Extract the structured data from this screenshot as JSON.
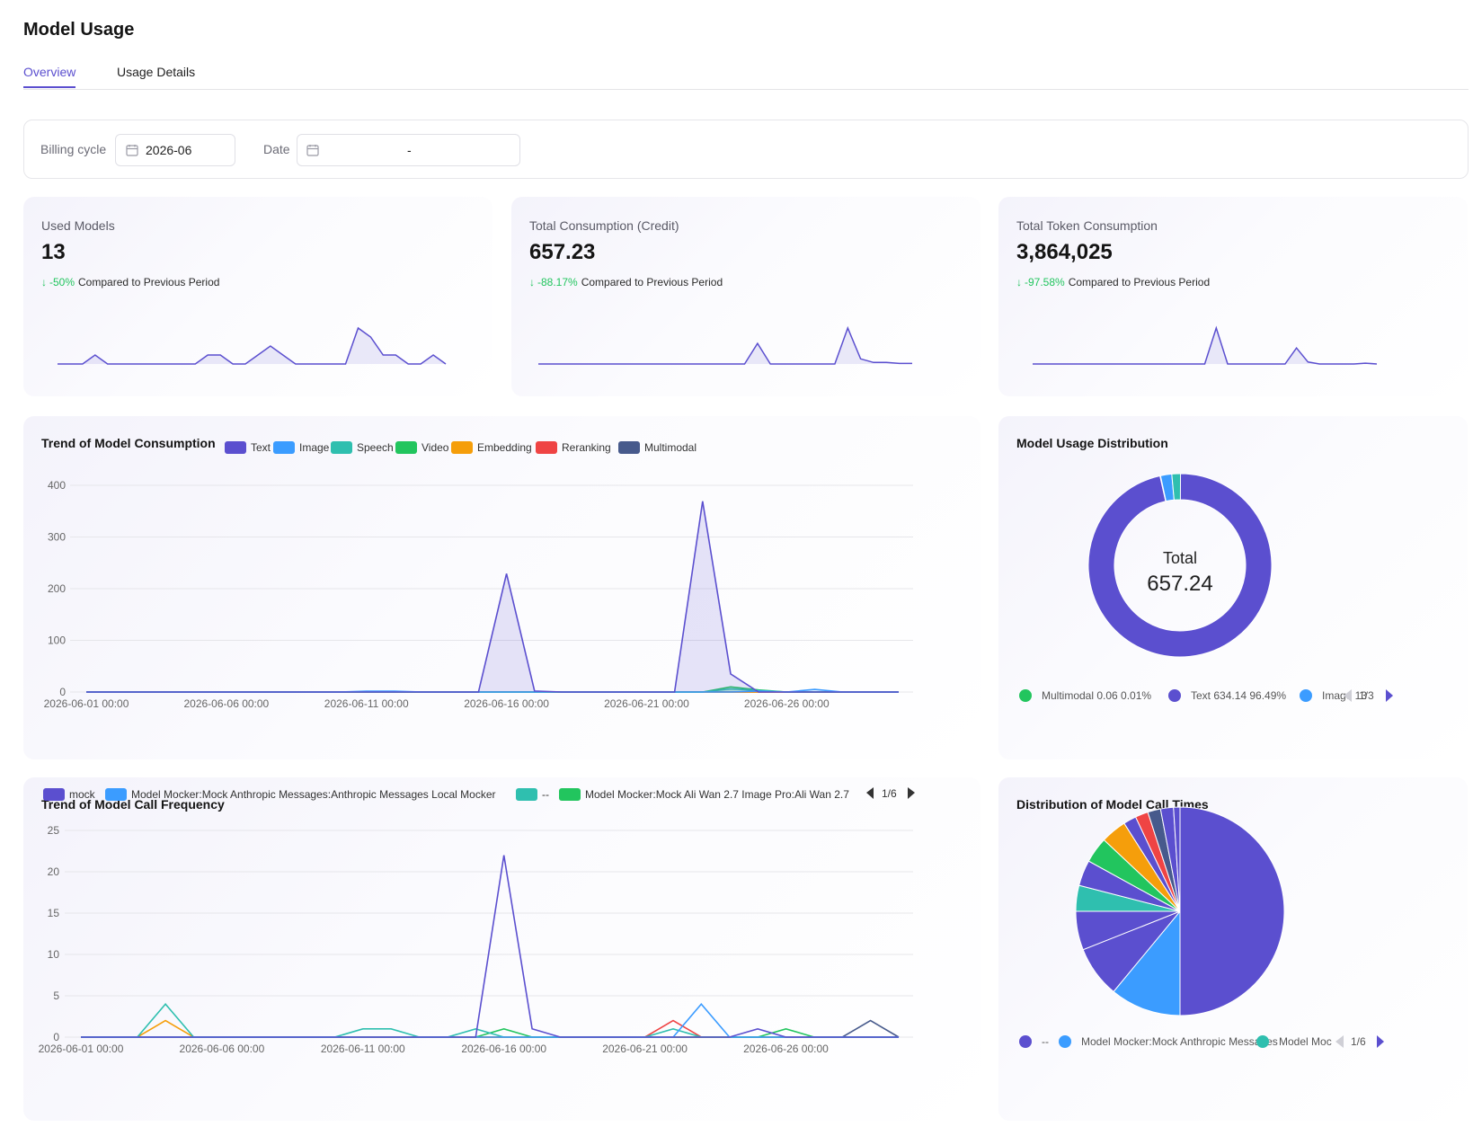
{
  "page": {
    "title": "Model Usage"
  },
  "tabs": [
    {
      "label": "Overview",
      "active": true
    },
    {
      "label": "Usage Details",
      "active": false
    }
  ],
  "filters": {
    "billing_cycle_label": "Billing cycle",
    "billing_cycle_value": "2026-06",
    "date_label": "Date",
    "date_separator": "-"
  },
  "colors": {
    "accent": "#5b4fcf",
    "positive": "#22c55e"
  },
  "kpis": [
    {
      "title": "Used Models",
      "value": "13",
      "change": "-50%",
      "change_text": "Compared to Previous Period"
    },
    {
      "title": "Total Consumption (Credit)",
      "value": "657.23",
      "change": "-88.17%",
      "change_text": "Compared to Previous Period"
    },
    {
      "title": "Total Token Consumption",
      "value": "3,864,025",
      "change": "-97.58%",
      "change_text": "Compared to Previous Period"
    }
  ],
  "sparklines": [
    [
      0,
      0,
      0,
      1,
      0,
      0,
      0,
      0,
      0,
      0,
      0,
      0,
      1,
      1,
      0,
      0,
      1,
      2,
      1,
      0,
      0,
      0,
      0,
      0,
      4,
      3,
      1,
      1,
      0,
      0,
      1,
      0
    ],
    [
      0,
      0,
      0,
      0,
      0,
      0,
      0,
      0,
      0,
      0,
      0,
      0,
      0,
      0,
      0,
      0,
      0,
      4,
      0,
      0,
      0,
      0,
      0,
      0,
      7,
      1,
      0.3,
      0.3,
      0.1,
      0.1
    ],
    [
      0,
      0,
      0,
      0,
      0,
      0,
      0,
      0,
      0,
      0,
      0,
      0,
      0,
      0,
      0,
      0,
      9,
      0,
      0,
      0,
      0,
      0,
      0,
      4,
      0.5,
      0,
      0,
      0,
      0,
      0.2,
      0
    ]
  ],
  "consumption_chart": {
    "title": "Trend of Model Consumption",
    "legend": [
      "Text",
      "Image",
      "Speech",
      "Video",
      "Embedding",
      "Reranking",
      "Multimodal"
    ],
    "pie_title": "Model Usage Distribution",
    "center_label": "Total",
    "center_value": "657.24",
    "pie_legend": [
      {
        "name": "Multimodal",
        "value": "0.06",
        "pct": "0.01%",
        "color": "#22c55e"
      },
      {
        "name": "Text",
        "value": "634.14",
        "pct": "96.49%",
        "color": "#5b4fcf"
      },
      {
        "name": "Image",
        "value": "13",
        "pct": "",
        "color": "#3b9cff"
      }
    ],
    "pie_page": "1/3"
  },
  "frequency_chart": {
    "title": "Trend of Model Call Frequency",
    "legend": [
      {
        "name": "mock",
        "color": "#5b4fcf"
      },
      {
        "name": "Model Mocker:Mock Anthropic Messages:Anthropic Messages Local Mocker",
        "color": "#3b9cff"
      },
      {
        "name": "--",
        "color": "#2fbfaf"
      },
      {
        "name": "Model Mocker:Mock Ali Wan 2.7 Image Pro:Ali Wan 2.7",
        "color": "#22c55e"
      }
    ],
    "legend_page": "1/6",
    "pie_title": "Distribution of Model Call Times",
    "pie_legend": [
      {
        "name": "--",
        "color": "#5b4fcf"
      },
      {
        "name": "Model Mocker:Mock Anthropic Messages",
        "color": "#3b9cff"
      },
      {
        "name": "Model Moc",
        "color": "#2fbfaf"
      }
    ],
    "pie_page": "1/6"
  },
  "chart_data": [
    {
      "type": "area",
      "title": "Trend of Model Consumption",
      "x": [
        "2026-06-01 00:00",
        "2026-06-02 00:00",
        "2026-06-03 00:00",
        "2026-06-04 00:00",
        "2026-06-05 00:00",
        "2026-06-06 00:00",
        "2026-06-07 00:00",
        "2026-06-08 00:00",
        "2026-06-09 00:00",
        "2026-06-10 00:00",
        "2026-06-11 00:00",
        "2026-06-12 00:00",
        "2026-06-13 00:00",
        "2026-06-14 00:00",
        "2026-06-15 00:00",
        "2026-06-16 00:00",
        "2026-06-17 00:00",
        "2026-06-18 00:00",
        "2026-06-19 00:00",
        "2026-06-20 00:00",
        "2026-06-21 00:00",
        "2026-06-22 00:00",
        "2026-06-23 00:00",
        "2026-06-24 00:00",
        "2026-06-25 00:00",
        "2026-06-26 00:00",
        "2026-06-27 00:00",
        "2026-06-28 00:00",
        "2026-06-29 00:00",
        "2026-06-30 00:00"
      ],
      "xticks": [
        "2026-06-01 00:00",
        "2026-06-06 00:00",
        "2026-06-11 00:00",
        "2026-06-16 00:00",
        "2026-06-21 00:00",
        "2026-06-26 00:00"
      ],
      "ylim": [
        0,
        400
      ],
      "yticks": [
        0,
        100,
        200,
        300,
        400
      ],
      "series": [
        {
          "name": "Text",
          "color": "#5b4fcf",
          "values": [
            0,
            0,
            0,
            0,
            0,
            0,
            0,
            0,
            0,
            0,
            0,
            0,
            0,
            0,
            0,
            229,
            2,
            0,
            0,
            0,
            0,
            0,
            369,
            35,
            0,
            0,
            0,
            0,
            0,
            0
          ]
        },
        {
          "name": "Image",
          "color": "#3b9cff",
          "values": [
            0,
            0,
            0,
            0,
            0,
            0,
            0,
            0,
            0,
            0,
            1.5,
            1.5,
            0,
            0,
            0,
            0,
            0,
            0,
            0,
            0,
            0,
            0,
            0,
            0,
            2,
            0,
            5,
            0,
            0,
            0
          ]
        },
        {
          "name": "Speech",
          "color": "#2fbfaf",
          "values": [
            0,
            0,
            0,
            0,
            0,
            0,
            0,
            0,
            0,
            0,
            0,
            0,
            0,
            0,
            0,
            0,
            0,
            0,
            0,
            0,
            0,
            0,
            0,
            6,
            3,
            0,
            0,
            0,
            0,
            0
          ]
        },
        {
          "name": "Video",
          "color": "#22c55e",
          "values": [
            0,
            0,
            0,
            0,
            0,
            0,
            0,
            0,
            0,
            0,
            0,
            0,
            0,
            0,
            0,
            0,
            0,
            0,
            0,
            0,
            0,
            0,
            0,
            10,
            4,
            0,
            0,
            0,
            0,
            0
          ]
        },
        {
          "name": "Embedding",
          "color": "#f59e0b",
          "values": [
            0,
            0,
            0,
            0,
            0,
            0,
            0,
            0,
            0,
            0,
            0,
            0,
            0,
            0,
            0,
            0,
            0,
            0,
            0,
            0,
            0,
            0,
            0,
            0,
            0,
            0,
            0,
            0,
            0,
            0
          ]
        },
        {
          "name": "Reranking",
          "color": "#ef4444",
          "values": [
            0,
            0,
            0,
            0,
            0,
            0,
            0,
            0,
            0,
            0,
            0,
            0,
            0,
            0,
            0,
            0,
            0,
            0,
            0,
            0,
            0,
            0,
            0,
            0,
            0,
            0,
            0,
            0,
            0,
            0
          ]
        },
        {
          "name": "Multimodal",
          "color": "#475a8c",
          "values": [
            0,
            0,
            0,
            0,
            0,
            0,
            0,
            0,
            0,
            0,
            0,
            0,
            0,
            0,
            0,
            0,
            0,
            0,
            0,
            0,
            0,
            0,
            0,
            0,
            0,
            0,
            0,
            0,
            0,
            0
          ]
        }
      ]
    },
    {
      "type": "pie",
      "title": "Model Usage Distribution",
      "donut": true,
      "slices": [
        {
          "name": "Text",
          "value": 634.14,
          "color": "#5b4fcf"
        },
        {
          "name": "Image",
          "value": 13,
          "color": "#3b9cff"
        },
        {
          "name": "Speech",
          "value": 10,
          "color": "#2fbfaf"
        },
        {
          "name": "Multimodal",
          "value": 0.06,
          "color": "#22c55e"
        }
      ]
    },
    {
      "type": "line",
      "title": "Trend of Model Call Frequency",
      "x": [
        "2026-06-01 00:00",
        "2026-06-02 00:00",
        "2026-06-03 00:00",
        "2026-06-04 00:00",
        "2026-06-05 00:00",
        "2026-06-06 00:00",
        "2026-06-07 00:00",
        "2026-06-08 00:00",
        "2026-06-09 00:00",
        "2026-06-10 00:00",
        "2026-06-11 00:00",
        "2026-06-12 00:00",
        "2026-06-13 00:00",
        "2026-06-14 00:00",
        "2026-06-15 00:00",
        "2026-06-16 00:00",
        "2026-06-17 00:00",
        "2026-06-18 00:00",
        "2026-06-19 00:00",
        "2026-06-20 00:00",
        "2026-06-21 00:00",
        "2026-06-22 00:00",
        "2026-06-23 00:00",
        "2026-06-24 00:00",
        "2026-06-25 00:00",
        "2026-06-26 00:00",
        "2026-06-27 00:00",
        "2026-06-28 00:00",
        "2026-06-29 00:00",
        "2026-06-30 00:00"
      ],
      "xticks": [
        "2026-06-01 00:00",
        "2026-06-06 00:00",
        "2026-06-11 00:00",
        "2026-06-16 00:00",
        "2026-06-21 00:00",
        "2026-06-26 00:00"
      ],
      "ylim": [
        0,
        25
      ],
      "yticks": [
        0,
        5,
        10,
        15,
        20,
        25
      ],
      "series": [
        {
          "name": "mock",
          "color": "#5b4fcf",
          "values": [
            0,
            0,
            0,
            0,
            0,
            0,
            0,
            0,
            0,
            0,
            0,
            0,
            0,
            0,
            0,
            22,
            1,
            0,
            0,
            0,
            0,
            0,
            0,
            0,
            1,
            0,
            0,
            0,
            0,
            0
          ]
        },
        {
          "name": "Model Mocker:Mock Anthropic Messages:Anthropic Messages Local Mocker",
          "color": "#3b9cff",
          "values": [
            0,
            0,
            0,
            0,
            0,
            0,
            0,
            0,
            0,
            0,
            0,
            0,
            0,
            0,
            0,
            0,
            0,
            0,
            0,
            0,
            0,
            0,
            4,
            0,
            0,
            0,
            0,
            0,
            0,
            0
          ]
        },
        {
          "name": "--",
          "color": "#2fbfaf",
          "values": [
            0,
            0,
            0,
            4,
            0,
            0,
            0,
            0,
            0,
            0,
            1,
            1,
            0,
            0,
            1,
            0,
            0,
            0,
            0,
            0,
            0,
            1,
            0,
            0,
            0,
            0,
            0,
            0,
            0,
            0
          ]
        },
        {
          "name": "Model Mocker:Mock Ali Wan 2.7 Image Pro:Ali Wan 2.7",
          "color": "#22c55e",
          "values": [
            0,
            0,
            0,
            0,
            0,
            0,
            0,
            0,
            0,
            0,
            0,
            0,
            0,
            0,
            0,
            1,
            0,
            0,
            0,
            0,
            0,
            0,
            0,
            0,
            0,
            1,
            0,
            0,
            0,
            0
          ]
        },
        {
          "color": "#f59e0b",
          "values": [
            0,
            0,
            0,
            2,
            0,
            0,
            0,
            0,
            0,
            0,
            0,
            0,
            0,
            0,
            0,
            0,
            0,
            0,
            0,
            0,
            0,
            0,
            0,
            0,
            0,
            0,
            0,
            0,
            0,
            0
          ]
        },
        {
          "color": "#ef4444",
          "values": [
            0,
            0,
            0,
            0,
            0,
            0,
            0,
            0,
            0,
            0,
            0,
            0,
            0,
            0,
            0,
            0,
            0,
            0,
            0,
            0,
            0,
            2,
            0,
            0,
            0,
            0,
            0,
            0,
            0,
            0
          ]
        },
        {
          "color": "#475a8c",
          "values": [
            0,
            0,
            0,
            0,
            0,
            0,
            0,
            0,
            0,
            0,
            0,
            0,
            0,
            0,
            0,
            0,
            0,
            0,
            0,
            0,
            0,
            0,
            0,
            0,
            0,
            0,
            0,
            0,
            2,
            0
          ]
        }
      ]
    },
    {
      "type": "pie",
      "title": "Distribution of Model Call Times",
      "slices": [
        {
          "name": "--",
          "value": 50,
          "color": "#5b4fcf"
        },
        {
          "name": "Model Mocker:Mock Anthropic Messages",
          "value": 11,
          "color": "#3b9cff"
        },
        {
          "value": 8,
          "color": "#5b4fcf"
        },
        {
          "value": 6,
          "color": "#5b4fcf"
        },
        {
          "value": 4,
          "color": "#2fbfaf"
        },
        {
          "value": 4,
          "color": "#5b4fcf"
        },
        {
          "value": 4,
          "color": "#22c55e"
        },
        {
          "value": 4,
          "color": "#f59e0b"
        },
        {
          "value": 2,
          "color": "#5b4fcf"
        },
        {
          "value": 2,
          "color": "#ef4444"
        },
        {
          "value": 2,
          "color": "#475a8c"
        },
        {
          "value": 2,
          "color": "#5b4fcf"
        },
        {
          "value": 1,
          "color": "#5b4fcf"
        }
      ]
    }
  ]
}
